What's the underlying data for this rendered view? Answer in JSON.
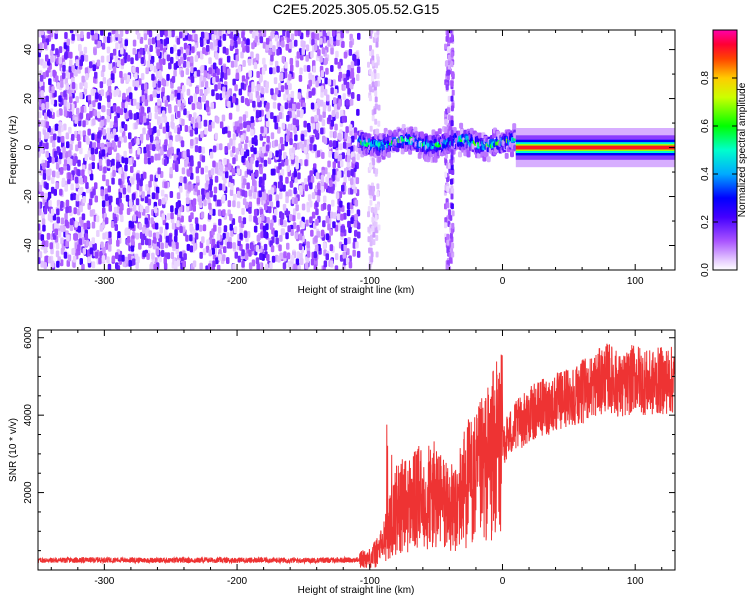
{
  "title": "C2E5.2025.305.05.52.G15",
  "chart_data": [
    {
      "type": "heatmap",
      "xlabel": "Height of straight line (km)",
      "ylabel": "Frequency (Hz)",
      "xlim": [
        -350,
        130
      ],
      "ylim": [
        -50,
        48
      ],
      "x_ticks": [
        -300,
        -200,
        -100,
        0,
        100
      ],
      "y_ticks": [
        -40,
        -20,
        0,
        20,
        40
      ],
      "colorbar": {
        "label": "Normalized spectral amplitude",
        "range": [
          0,
          1
        ],
        "ticks": [
          0.0,
          0.2,
          0.4,
          0.6,
          0.8
        ],
        "tick_labels": [
          "0.0",
          "0.2",
          "0.4",
          "0.6",
          "0.8"
        ],
        "colors": [
          "#ffffff",
          "#cc99ff",
          "#8800ff",
          "#0000ff",
          "#00c8ff",
          "#00ff00",
          "#ffff00",
          "#ff8000",
          "#ff0000",
          "#ff00aa"
        ]
      },
      "regions": [
        {
          "x_range": [
            -350,
            -108
          ],
          "description_level": 0.15
        },
        {
          "x_range": [
            -108,
            10
          ],
          "center_freq": 2,
          "peak_level": 0.5
        },
        {
          "x_range": [
            10,
            130
          ],
          "center_freq": 0,
          "peak_level": 0.95
        }
      ]
    },
    {
      "type": "line",
      "xlabel": "Height of straight line (km)",
      "ylabel": "SNR (10 * v/v)",
      "xlim": [
        -350,
        130
      ],
      "ylim": [
        0,
        6200
      ],
      "x_ticks": [
        -300,
        -200,
        -100,
        0,
        100
      ],
      "y_ticks": [
        2000,
        4000,
        6000
      ],
      "color": "#ee3333",
      "series": [
        {
          "x": [
            -350,
            -300,
            -250,
            -200,
            -150,
            -110,
            -100,
            -95,
            -90,
            -85,
            -80,
            -70,
            -60,
            -50,
            -40,
            -35,
            -30,
            -25,
            -20,
            -15,
            -10,
            -5,
            0,
            5,
            10,
            20,
            30,
            40,
            50,
            60,
            70,
            80,
            90,
            100,
            110,
            120,
            130
          ],
          "values": [
            250,
            260,
            250,
            255,
            250,
            260,
            300,
            450,
            700,
            1100,
            1600,
            1700,
            1900,
            1900,
            1600,
            1500,
            2100,
            2300,
            2300,
            2600,
            2800,
            3100,
            3300,
            3500,
            3700,
            4000,
            4200,
            4300,
            4500,
            4600,
            4800,
            5000,
            4700,
            5000,
            4800,
            4900,
            4900
          ]
        }
      ]
    }
  ]
}
